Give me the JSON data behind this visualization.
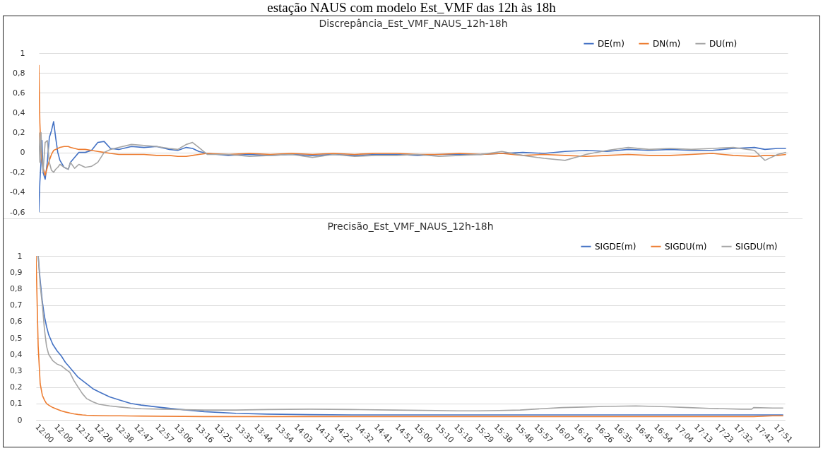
{
  "chart_data": [
    {
      "type": "line",
      "title": "Discrepância_Est_VMF_NAUS_12h-18h",
      "annotations": [
        "estação NAUS com modelo Est_VMF das 12h às 18h"
      ],
      "x": [
        12,
        12.008,
        12.017,
        12.025,
        12.033,
        12.05,
        12.067,
        12.083,
        12.1,
        12.117,
        12.133,
        12.15,
        12.167,
        12.2,
        12.233,
        12.25,
        12.283,
        12.317,
        12.367,
        12.417,
        12.467,
        12.517,
        12.567,
        12.633,
        12.733,
        12.833,
        12.933,
        13.033,
        13.1,
        13.167,
        13.217,
        13.267,
        13.333,
        13.5,
        13.667,
        13.833,
        14,
        14.167,
        14.333,
        14.5,
        14.667,
        14.833,
        15,
        15.167,
        15.333,
        15.5,
        15.667,
        15.833,
        16,
        16.167,
        16.333,
        16.5,
        16.667,
        16.833,
        17,
        17.167,
        17.333,
        17.5,
        17.667,
        17.75,
        17.85,
        17.917
      ],
      "series": [
        {
          "name": "DE(m)",
          "color": "#4472c4",
          "values": [
            -0.6,
            -0.3,
            -0.1,
            0.12,
            -0.2,
            -0.27,
            -0.1,
            0.15,
            0.22,
            0.31,
            0.15,
            0.0,
            -0.08,
            -0.15,
            -0.17,
            -0.1,
            -0.05,
            0.0,
            0.0,
            0.02,
            0.1,
            0.11,
            0.04,
            0.03,
            0.06,
            0.05,
            0.06,
            0.03,
            0.02,
            0.05,
            0.04,
            0.01,
            -0.01,
            -0.03,
            -0.02,
            -0.03,
            -0.02,
            -0.03,
            -0.02,
            -0.03,
            -0.02,
            -0.02,
            -0.03,
            -0.02,
            -0.02,
            -0.02,
            -0.01,
            0.0,
            -0.01,
            0.01,
            0.02,
            0.01,
            0.03,
            0.02,
            0.03,
            0.02,
            0.02,
            0.04,
            0.05,
            0.03,
            0.04,
            0.04
          ]
        },
        {
          "name": "DN(m)",
          "color": "#ed7d31",
          "values": [
            0.88,
            0.3,
            0.0,
            -0.1,
            -0.15,
            -0.23,
            -0.15,
            -0.08,
            -0.02,
            0.02,
            0.03,
            0.04,
            0.05,
            0.06,
            0.06,
            0.05,
            0.04,
            0.03,
            0.03,
            0.02,
            0.01,
            0.0,
            -0.01,
            -0.02,
            -0.02,
            -0.02,
            -0.03,
            -0.03,
            -0.04,
            -0.04,
            -0.03,
            -0.02,
            -0.01,
            -0.02,
            -0.01,
            -0.02,
            -0.01,
            -0.02,
            -0.01,
            -0.02,
            -0.01,
            -0.01,
            -0.02,
            -0.02,
            -0.01,
            -0.02,
            -0.01,
            -0.03,
            -0.02,
            -0.03,
            -0.04,
            -0.03,
            -0.02,
            -0.03,
            -0.03,
            -0.02,
            -0.01,
            -0.03,
            -0.04,
            -0.03,
            -0.03,
            -0.02
          ]
        },
        {
          "name": "DU(m)",
          "color": "#a5a5a5",
          "values": [
            0.2,
            -0.1,
            0.2,
            -0.05,
            -0.2,
            0.1,
            0.12,
            -0.1,
            -0.18,
            -0.2,
            -0.17,
            -0.15,
            -0.12,
            -0.15,
            -0.17,
            -0.1,
            -0.16,
            -0.12,
            -0.15,
            -0.14,
            -0.1,
            0.0,
            0.03,
            0.05,
            0.08,
            0.07,
            0.06,
            0.04,
            0.03,
            0.08,
            0.1,
            0.05,
            -0.02,
            -0.02,
            -0.04,
            -0.03,
            -0.02,
            -0.05,
            -0.02,
            -0.04,
            -0.03,
            -0.03,
            -0.02,
            -0.04,
            -0.03,
            -0.02,
            0.01,
            -0.03,
            -0.06,
            -0.08,
            -0.02,
            0.02,
            0.05,
            0.03,
            0.04,
            0.03,
            0.04,
            0.05,
            0.02,
            -0.08,
            -0.02,
            0.0
          ]
        }
      ],
      "xlim": [
        12,
        17.93
      ],
      "ylim": [
        -0.6,
        1
      ],
      "yticks": [
        {
          "value": -0.6,
          "label": "-0,6"
        },
        {
          "value": -0.4,
          "label": "-0,4"
        },
        {
          "value": -0.2,
          "label": "-0,2"
        },
        {
          "value": 0,
          "label": "0"
        },
        {
          "value": 0.2,
          "label": "0,2"
        },
        {
          "value": 0.4,
          "label": "0,4"
        },
        {
          "value": 0.6,
          "label": "0,6"
        },
        {
          "value": 0.8,
          "label": "0,8"
        },
        {
          "value": 1,
          "label": "1"
        }
      ],
      "grid": "y",
      "legend": "top right",
      "tick_labels": "y"
    },
    {
      "type": "line",
      "title": "Precisão_Est_VMF_NAUS_12h-18h",
      "x": [
        12,
        12.017,
        12.033,
        12.05,
        12.067,
        12.083,
        12.1,
        12.133,
        12.167,
        12.2,
        12.233,
        12.267,
        12.3,
        12.333,
        12.367,
        12.4,
        12.45,
        12.5,
        12.583,
        12.667,
        12.75,
        12.833,
        13,
        13.167,
        13.333,
        13.583,
        13.833,
        14.167,
        14.5,
        14.833,
        15.167,
        15.333,
        15.5,
        15.667,
        15.833,
        16,
        16.167,
        16.333,
        16.5,
        16.75,
        17,
        17.167,
        17.333,
        17.583,
        17.667,
        17.683,
        17.833,
        17.917
      ],
      "series": [
        {
          "name": "SIGDE(m)",
          "color": "#4472c4",
          "values": [
            null,
            1.0,
            0.85,
            0.72,
            0.63,
            0.57,
            0.52,
            0.46,
            0.42,
            0.39,
            0.35,
            0.32,
            0.29,
            0.26,
            0.24,
            0.22,
            0.19,
            0.17,
            0.14,
            0.12,
            0.1,
            0.09,
            0.075,
            0.062,
            0.05,
            0.04,
            0.035,
            0.032,
            0.03,
            0.03,
            0.03,
            0.03,
            0.03,
            0.03,
            0.03,
            0.03,
            0.03,
            0.03,
            0.03,
            0.03,
            0.03,
            0.03,
            0.03,
            0.03,
            0.03,
            0.03,
            0.03,
            0.03
          ]
        },
        {
          "name": "SIGDU(m)",
          "color": "#ed7d31",
          "values": [
            1.0,
            0.45,
            0.22,
            0.15,
            0.12,
            0.1,
            0.09,
            0.075,
            0.065,
            0.055,
            0.048,
            0.042,
            0.037,
            0.033,
            0.03,
            0.028,
            0.027,
            0.026,
            0.025,
            0.025,
            0.024,
            0.023,
            0.022,
            0.021,
            0.02,
            0.02,
            0.02,
            0.02,
            0.02,
            0.02,
            0.02,
            0.02,
            0.02,
            0.02,
            0.02,
            0.02,
            0.02,
            0.02,
            0.02,
            0.02,
            0.02,
            0.02,
            0.02,
            0.02,
            0.02,
            0.02,
            0.025,
            0.025
          ]
        },
        {
          "name": "SIGDU(m)",
          "color": "#a5a5a5",
          "values": [
            null,
            1.0,
            0.82,
            0.7,
            0.55,
            0.45,
            0.4,
            0.36,
            0.34,
            0.33,
            0.31,
            0.29,
            0.24,
            0.2,
            0.16,
            0.13,
            0.11,
            0.095,
            0.085,
            0.078,
            0.072,
            0.068,
            0.065,
            0.062,
            0.06,
            0.06,
            0.063,
            0.065,
            0.063,
            0.06,
            0.057,
            0.055,
            0.055,
            0.057,
            0.06,
            0.068,
            0.075,
            0.078,
            0.082,
            0.085,
            0.08,
            0.075,
            0.07,
            0.065,
            0.065,
            0.075,
            0.072,
            0.072
          ]
        }
      ],
      "xlim": [
        12,
        17.93
      ],
      "ylim": [
        0,
        1
      ],
      "xticks": [
        {
          "value": 12,
          "label": "12:00"
        },
        {
          "value": 12.15,
          "label": "12:09"
        },
        {
          "value": 12.317,
          "label": "12:19"
        },
        {
          "value": 12.467,
          "label": "12:28"
        },
        {
          "value": 12.633,
          "label": "12:38"
        },
        {
          "value": 12.783,
          "label": "12:47"
        },
        {
          "value": 12.95,
          "label": "12:57"
        },
        {
          "value": 13.1,
          "label": "13:06"
        },
        {
          "value": 13.267,
          "label": "13:16"
        },
        {
          "value": 13.417,
          "label": "13:25"
        },
        {
          "value": 13.583,
          "label": "13:35"
        },
        {
          "value": 13.733,
          "label": "13:44"
        },
        {
          "value": 13.9,
          "label": "13:54"
        },
        {
          "value": 14.05,
          "label": "14:03"
        },
        {
          "value": 14.217,
          "label": "14:13"
        },
        {
          "value": 14.367,
          "label": "14:22"
        },
        {
          "value": 14.533,
          "label": "14:32"
        },
        {
          "value": 14.683,
          "label": "14:41"
        },
        {
          "value": 14.85,
          "label": "14:51"
        },
        {
          "value": 15,
          "label": "15:00"
        },
        {
          "value": 15.167,
          "label": "15:10"
        },
        {
          "value": 15.317,
          "label": "15:19"
        },
        {
          "value": 15.483,
          "label": "15:29"
        },
        {
          "value": 15.633,
          "label": "15:38"
        },
        {
          "value": 15.8,
          "label": "15:48"
        },
        {
          "value": 15.95,
          "label": "15:57"
        },
        {
          "value": 16.117,
          "label": "16:07"
        },
        {
          "value": 16.267,
          "label": "16:16"
        },
        {
          "value": 16.433,
          "label": "16:26"
        },
        {
          "value": 16.583,
          "label": "16:35"
        },
        {
          "value": 16.75,
          "label": "16:45"
        },
        {
          "value": 16.9,
          "label": "16:54"
        },
        {
          "value": 17.067,
          "label": "17:04"
        },
        {
          "value": 17.217,
          "label": "17:13"
        },
        {
          "value": 17.383,
          "label": "17:23"
        },
        {
          "value": 17.533,
          "label": "17:32"
        },
        {
          "value": 17.7,
          "label": "17:42"
        },
        {
          "value": 17.85,
          "label": "17:51"
        }
      ],
      "yticks": [
        {
          "value": 0,
          "label": "0"
        },
        {
          "value": 0.1,
          "label": "0,1"
        },
        {
          "value": 0.2,
          "label": "0,2"
        },
        {
          "value": 0.3,
          "label": "0,3"
        },
        {
          "value": 0.4,
          "label": "0,4"
        },
        {
          "value": 0.5,
          "label": "0,5"
        },
        {
          "value": 0.6,
          "label": "0,6"
        },
        {
          "value": 0.7,
          "label": "0,7"
        },
        {
          "value": 0.8,
          "label": "0,8"
        },
        {
          "value": 0.9,
          "label": "0,9"
        },
        {
          "value": 1,
          "label": "1"
        }
      ],
      "grid": "y",
      "legend": "top right"
    }
  ]
}
